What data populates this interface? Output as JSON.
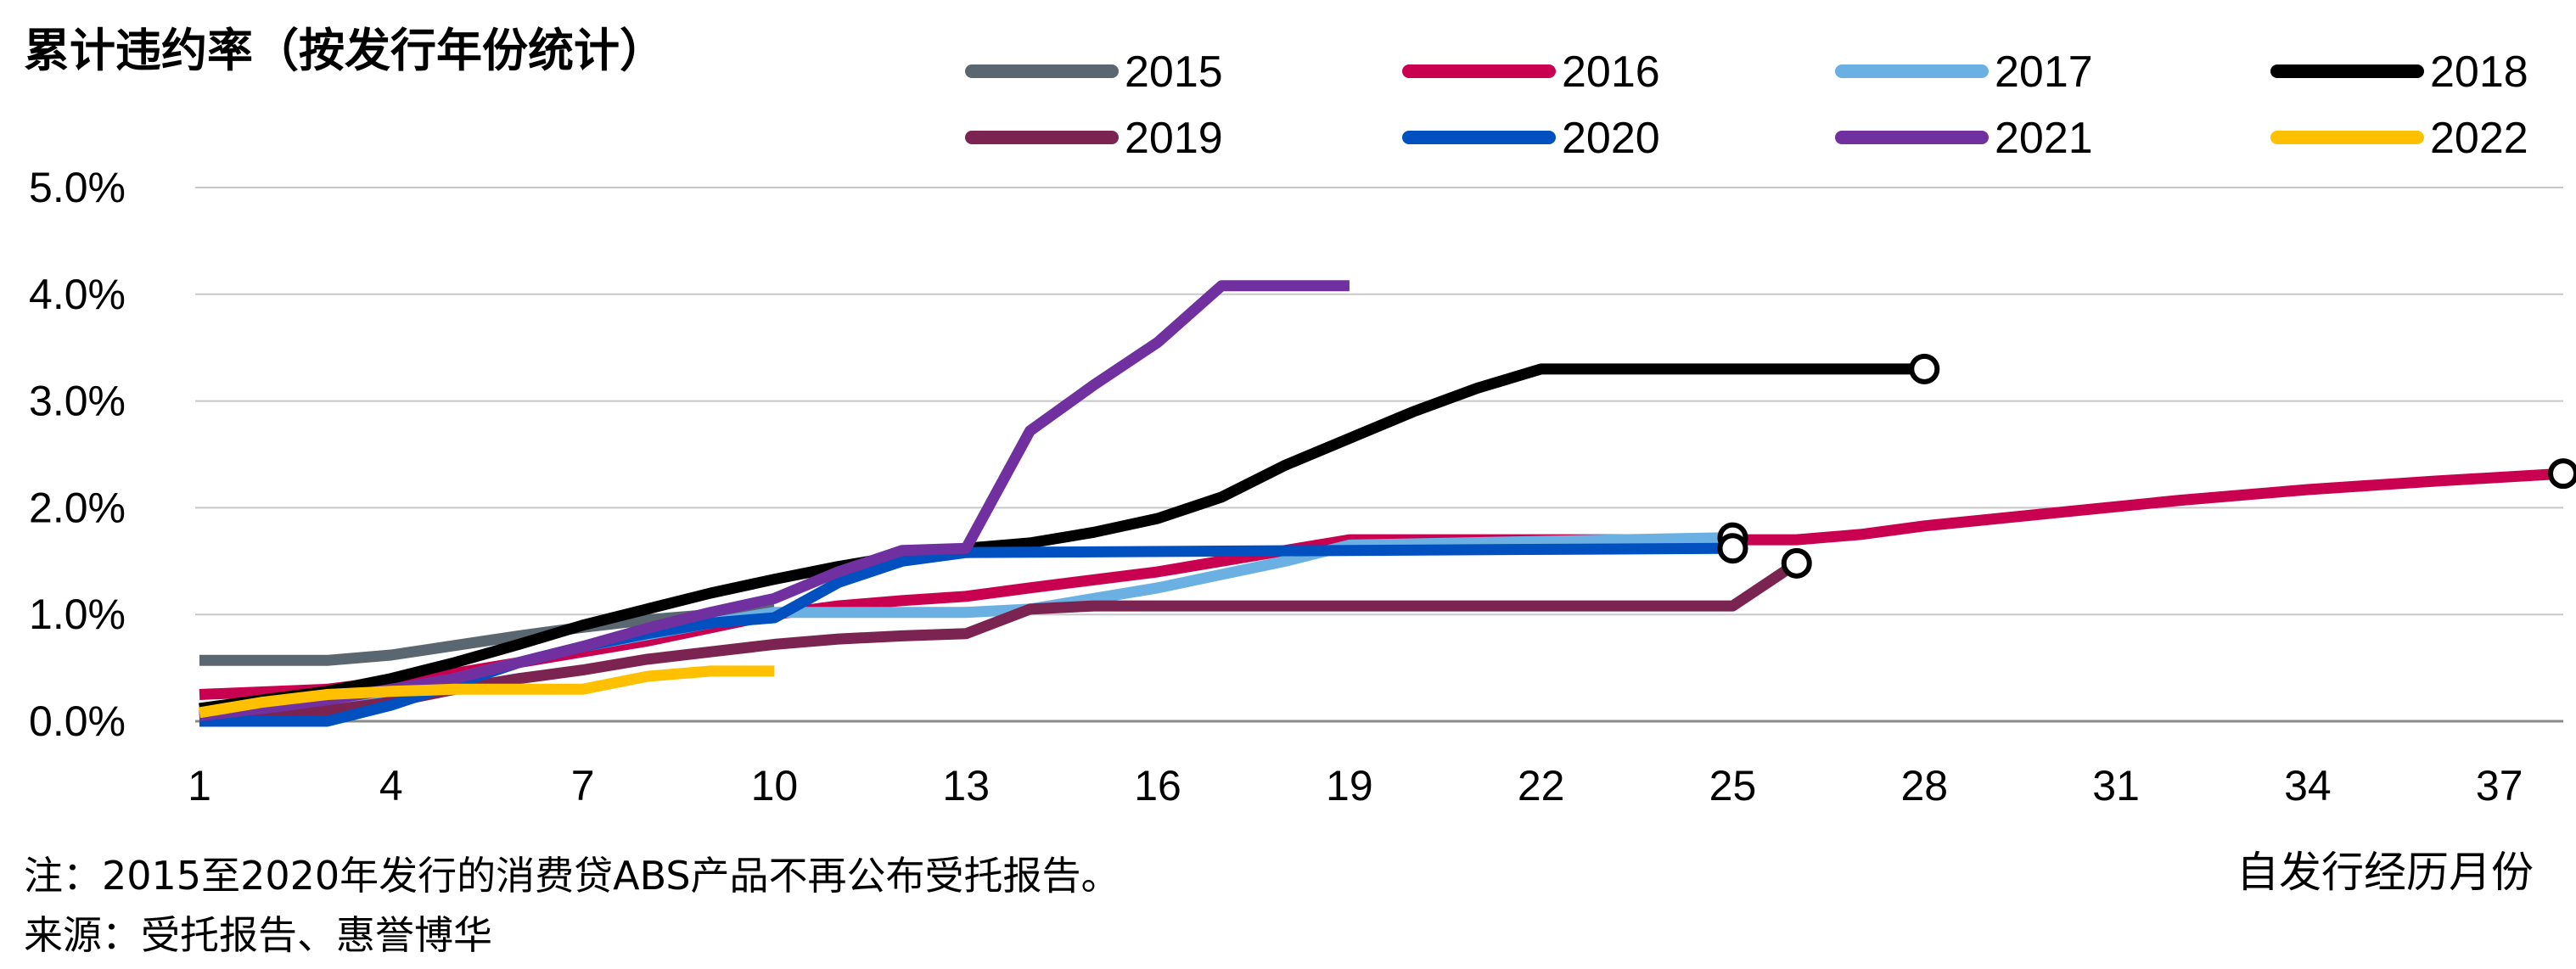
{
  "chart_data": {
    "type": "line",
    "title": "累计违约率（按发行年份统计）",
    "xlabel": "自发行经历月份",
    "ylabel": "",
    "xlim": [
      1,
      38
    ],
    "ylim": [
      0,
      5
    ],
    "x_ticks": [
      1,
      4,
      7,
      10,
      13,
      16,
      19,
      22,
      25,
      28,
      31,
      34,
      37
    ],
    "y_ticks": [
      0,
      1,
      2,
      3,
      4,
      5
    ],
    "y_tick_labels": [
      "0.0%",
      "1.0%",
      "2.0%",
      "3.0%",
      "4.0%",
      "5.0%"
    ],
    "grid": "horizontal",
    "legend_position": "top",
    "series": [
      {
        "name": "2015",
        "color": "#5B6770",
        "end_marker": false,
        "points": [
          [
            1,
            0.57
          ],
          [
            3,
            0.57
          ],
          [
            4,
            0.62
          ],
          [
            5,
            0.71
          ],
          [
            6,
            0.8
          ],
          [
            7,
            0.88
          ],
          [
            8,
            0.95
          ],
          [
            9,
            1.0
          ],
          [
            10,
            1.05
          ]
        ]
      },
      {
        "name": "2016",
        "color": "#C8004F",
        "end_marker": true,
        "points": [
          [
            1,
            0.25
          ],
          [
            3,
            0.3
          ],
          [
            5,
            0.45
          ],
          [
            8,
            0.75
          ],
          [
            10,
            1.0
          ],
          [
            11,
            1.08
          ],
          [
            12,
            1.13
          ],
          [
            13,
            1.17
          ],
          [
            14,
            1.25
          ],
          [
            16,
            1.4
          ],
          [
            18,
            1.6
          ],
          [
            19,
            1.7
          ],
          [
            25,
            1.7
          ],
          [
            26,
            1.7
          ],
          [
            27,
            1.75
          ],
          [
            28,
            1.83
          ],
          [
            30,
            1.95
          ],
          [
            32,
            2.07
          ],
          [
            34,
            2.17
          ],
          [
            36,
            2.25
          ],
          [
            38,
            2.32
          ]
        ]
      },
      {
        "name": "2017",
        "color": "#6AB0E3",
        "end_marker": true,
        "points": [
          [
            1,
            0.05
          ],
          [
            3,
            0.15
          ],
          [
            5,
            0.4
          ],
          [
            7,
            0.7
          ],
          [
            9,
            0.92
          ],
          [
            10,
            1.02
          ],
          [
            13,
            1.02
          ],
          [
            14,
            1.05
          ],
          [
            16,
            1.25
          ],
          [
            18,
            1.5
          ],
          [
            19,
            1.65
          ],
          [
            25,
            1.72
          ]
        ]
      },
      {
        "name": "2018",
        "color": "#000000",
        "end_marker": true,
        "points": [
          [
            1,
            0.12
          ],
          [
            2,
            0.2
          ],
          [
            3,
            0.28
          ],
          [
            4,
            0.4
          ],
          [
            5,
            0.55
          ],
          [
            6,
            0.72
          ],
          [
            7,
            0.9
          ],
          [
            8,
            1.05
          ],
          [
            9,
            1.2
          ],
          [
            10,
            1.33
          ],
          [
            11,
            1.45
          ],
          [
            12,
            1.55
          ],
          [
            13,
            1.62
          ],
          [
            14,
            1.67
          ],
          [
            15,
            1.77
          ],
          [
            16,
            1.9
          ],
          [
            17,
            2.1
          ],
          [
            18,
            2.4
          ],
          [
            19,
            2.65
          ],
          [
            20,
            2.9
          ],
          [
            21,
            3.12
          ],
          [
            22,
            3.3
          ],
          [
            28,
            3.3
          ]
        ]
      },
      {
        "name": "2019",
        "color": "#7B2452",
        "end_marker": true,
        "points": [
          [
            1,
            0.02
          ],
          [
            2,
            0.05
          ],
          [
            3,
            0.1
          ],
          [
            4,
            0.18
          ],
          [
            5,
            0.3
          ],
          [
            6,
            0.4
          ],
          [
            7,
            0.48
          ],
          [
            8,
            0.58
          ],
          [
            9,
            0.65
          ],
          [
            10,
            0.72
          ],
          [
            11,
            0.77
          ],
          [
            12,
            0.8
          ],
          [
            13,
            0.82
          ],
          [
            14,
            1.05
          ],
          [
            15,
            1.08
          ],
          [
            25,
            1.08
          ],
          [
            26,
            1.48
          ]
        ]
      },
      {
        "name": "2020",
        "color": "#0050BF",
        "end_marker": true,
        "points": [
          [
            1,
            0.0
          ],
          [
            3,
            0.0
          ],
          [
            4,
            0.15
          ],
          [
            5,
            0.35
          ],
          [
            6,
            0.55
          ],
          [
            7,
            0.7
          ],
          [
            8,
            0.82
          ],
          [
            9,
            0.92
          ],
          [
            10,
            0.97
          ],
          [
            11,
            1.3
          ],
          [
            12,
            1.5
          ],
          [
            13,
            1.58
          ],
          [
            25,
            1.62
          ]
        ]
      },
      {
        "name": "2021",
        "color": "#7030A0",
        "end_marker": false,
        "points": [
          [
            1,
            0.05
          ],
          [
            2,
            0.12
          ],
          [
            3,
            0.2
          ],
          [
            4,
            0.3
          ],
          [
            5,
            0.4
          ],
          [
            6,
            0.55
          ],
          [
            7,
            0.7
          ],
          [
            8,
            0.87
          ],
          [
            9,
            1.02
          ],
          [
            10,
            1.15
          ],
          [
            11,
            1.4
          ],
          [
            12,
            1.6
          ],
          [
            13,
            1.62
          ],
          [
            14,
            2.72
          ],
          [
            15,
            3.15
          ],
          [
            16,
            3.55
          ],
          [
            17,
            4.08
          ],
          [
            19,
            4.08
          ]
        ]
      },
      {
        "name": "2022",
        "color": "#FFC000",
        "end_marker": false,
        "points": [
          [
            1,
            0.08
          ],
          [
            2,
            0.18
          ],
          [
            3,
            0.25
          ],
          [
            4,
            0.28
          ],
          [
            5,
            0.3
          ],
          [
            6,
            0.3
          ],
          [
            7,
            0.3
          ],
          [
            8,
            0.42
          ],
          [
            9,
            0.47
          ],
          [
            10,
            0.47
          ]
        ]
      }
    ],
    "notes": [
      "注：2015至2020年发行的消费贷ABS产品不再公布受托报告。",
      "来源：受托报告、惠誉博华"
    ]
  }
}
